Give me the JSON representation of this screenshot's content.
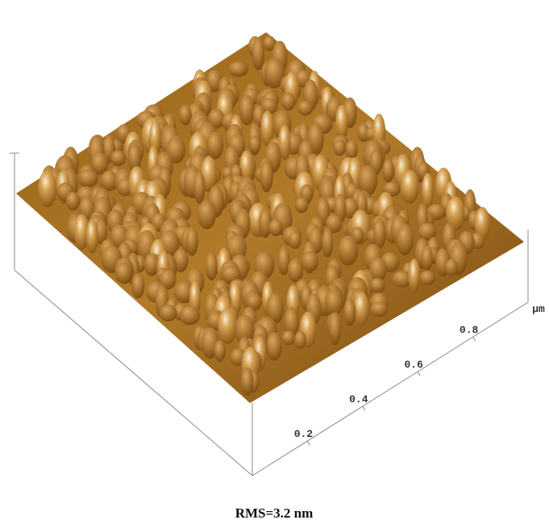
{
  "axis": {
    "ticks": [
      "0.2",
      "0.4",
      "0.6",
      "0.8"
    ],
    "unit": "µm"
  },
  "caption": "RMS=3.2 nm"
}
